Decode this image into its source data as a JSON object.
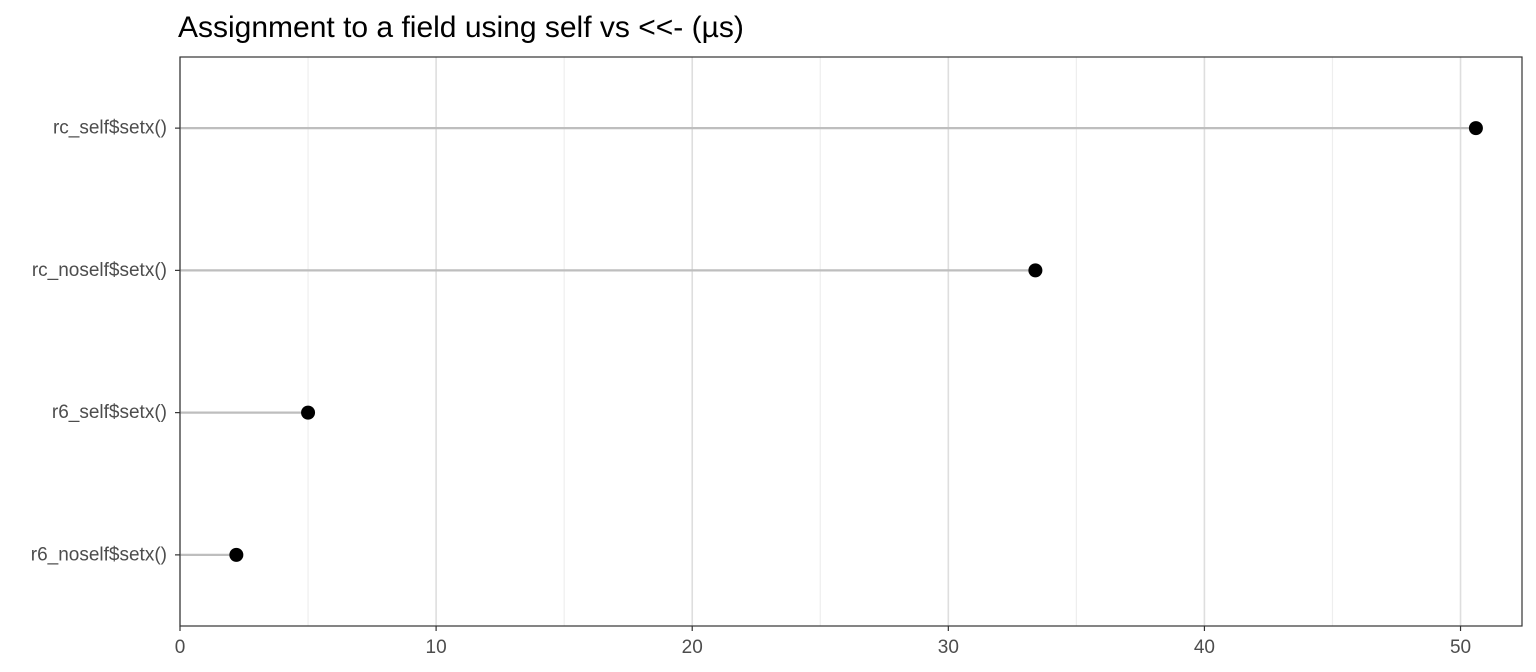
{
  "chart_data": {
    "type": "lollipop",
    "title": "Assignment to a field using self vs <<- (µs)",
    "xlabel": "",
    "ylabel": "",
    "xlim": [
      0,
      52.4
    ],
    "x_ticks": [
      0,
      10,
      20,
      30,
      40,
      50
    ],
    "x_minor_ticks": [
      5,
      15,
      25,
      35,
      45
    ],
    "grid": true,
    "categories": [
      "rc_self$setx()",
      "rc_noself$setx()",
      "r6_self$setx()",
      "r6_noself$setx()"
    ],
    "values": [
      50.6,
      33.4,
      5.0,
      2.2
    ],
    "colors": {
      "point": "#000000",
      "stem": "#bebebe",
      "grid_major": "#dedede",
      "grid_minor": "#eeeeee",
      "panel_border": "#333333",
      "tick_text": "#4d4d4d"
    }
  }
}
